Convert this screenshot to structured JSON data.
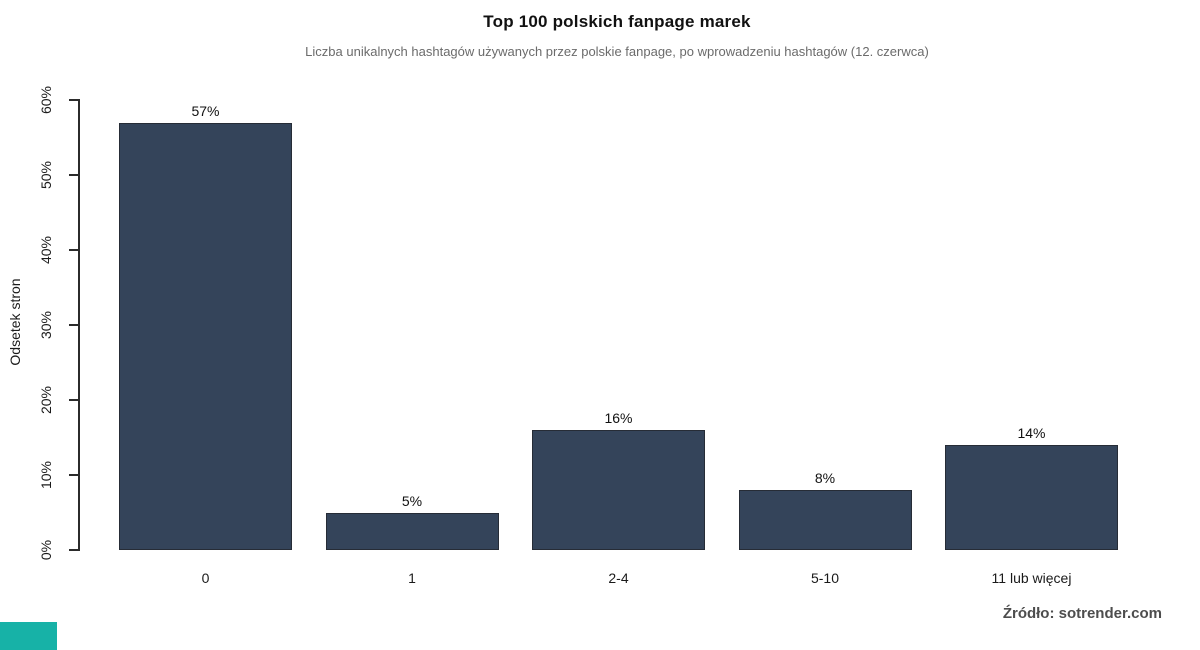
{
  "chart_data": {
    "type": "bar",
    "title": "Top 100 polskich fanpage marek",
    "subtitle": "Liczba unikalnych hashtagów używanych przez polskie fanpage, po wprowadzeniu hashtagów (12. czerwca)",
    "categories": [
      "0",
      "1",
      "2-4",
      "5-10",
      "11 lub więcej"
    ],
    "values": [
      57,
      5,
      16,
      8,
      14
    ],
    "value_labels": [
      "57%",
      "5%",
      "16%",
      "8%",
      "14%"
    ],
    "xlabel": "",
    "ylabel": "Odsetek stron",
    "y_ticks": [
      "0%",
      "10%",
      "20%",
      "30%",
      "40%",
      "50%",
      "60%"
    ],
    "ylim": [
      0,
      60
    ],
    "grid": false,
    "legend_position": "none",
    "bar_color": "#34445a",
    "bar_border_color": "#262c36"
  },
  "footer": {
    "source": "Źródło: sotrender.com",
    "brand_color": "#17b2a7"
  }
}
